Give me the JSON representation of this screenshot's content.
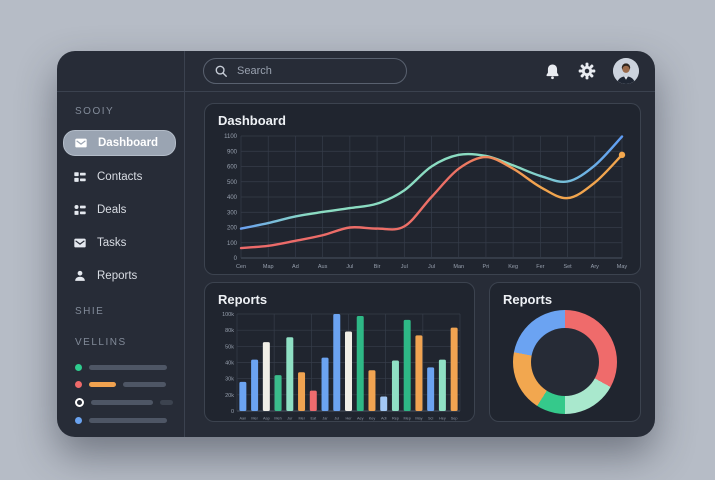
{
  "topbar": {
    "search": {
      "placeholder": "Search"
    },
    "icons": [
      "bell-icon",
      "gear-icon",
      "avatar"
    ]
  },
  "sidebar": {
    "section1_label": "SOOIY",
    "items": [
      {
        "label": "Dashboard",
        "icon": "mail-icon",
        "active": true
      },
      {
        "label": "Contacts",
        "icon": "list-icon",
        "active": false
      },
      {
        "label": "Deals",
        "icon": "people-icon",
        "active": false
      },
      {
        "label": "Tasks",
        "icon": "mail-icon",
        "active": false
      },
      {
        "label": "Reports",
        "icon": "person-icon",
        "active": false
      }
    ],
    "section2_label": "SHIE",
    "section3_label": "VELLINS",
    "legend_rows": [
      {
        "dot": "#2ecc8e",
        "ring": false,
        "bars": [
          {
            "c": "#4e5665",
            "w": 78
          }
        ]
      },
      {
        "dot": "#ee6a6a",
        "ring": false,
        "bars": [
          {
            "c": "#f0a24f",
            "w": 27
          },
          {
            "c": "#4e5665",
            "w": 43
          }
        ]
      },
      {
        "dot": "#ffffff",
        "ring": true,
        "bars": [
          {
            "c": "#4e5665",
            "w": 62
          },
          {
            "c": "#3c434f",
            "w": 13
          }
        ]
      },
      {
        "dot": "#6aa3f0",
        "ring": false,
        "bars": [
          {
            "c": "#4e5665",
            "w": 78
          }
        ]
      }
    ]
  },
  "colors": {
    "page_background": "#b6bcc6",
    "window_background": "#272c37",
    "card_background": "#20252f",
    "accent_blue": "#6ba3f1",
    "accent_mint": "#8bdcc2",
    "accent_green": "#2eb886",
    "accent_orange": "#f2a54e",
    "accent_red": "#ee6a6a"
  },
  "chart_data": [
    {
      "type": "line",
      "title": "Dashboard",
      "x_labels": [
        "Cen",
        "Map",
        "Ad",
        "Aus",
        "Jul",
        "Bir",
        "Jul",
        "Jul",
        "Man",
        "Pri",
        "Keg",
        "Fer",
        "Set",
        "Ary",
        "May"
      ],
      "y_labels": [
        "1100",
        "900",
        "600",
        "500",
        "400",
        "300",
        "200",
        "100",
        "0"
      ],
      "ylim": [
        0,
        1100
      ],
      "grid": true,
      "legend_position": "none",
      "series": [
        {
          "name": "teal-blue",
          "values": [
            265,
            315,
            375,
            415,
            450,
            490,
            610,
            825,
            930,
            920,
            835,
            740,
            690,
            835,
            1095
          ],
          "stops": [
            [
              0,
              "#6aa0f0"
            ],
            [
              0.18,
              "#8bdcc2"
            ],
            [
              0.72,
              "#8bdcc2"
            ],
            [
              1,
              "#5f9df5"
            ]
          ],
          "end_dot": false
        },
        {
          "name": "red-orange",
          "values": [
            90,
            110,
            155,
            205,
            275,
            265,
            285,
            550,
            805,
            910,
            805,
            640,
            540,
            680,
            930
          ],
          "stops": [
            [
              0,
              "#ec6a6a"
            ],
            [
              0.55,
              "#ec7066"
            ],
            [
              0.78,
              "#f2a54e"
            ],
            [
              1,
              "#f2a54e"
            ]
          ],
          "end_dot": true,
          "dot_color": "#f5a84e"
        }
      ]
    },
    {
      "type": "bar",
      "title": "Reports",
      "x_labels": [
        "Aan",
        "Mer",
        "Aap",
        "Meh",
        "Jur",
        "Mei",
        "Eat",
        "Jar",
        "Jul",
        "Her",
        "Aey",
        "Key",
        "Adi",
        "Rep",
        "Mep",
        "May",
        "Sci",
        "Hey",
        "Sep"
      ],
      "y_labels": [
        "100k",
        "80k",
        "50k",
        "40k",
        "30k",
        "20k",
        "0"
      ],
      "ylim": [
        0,
        100
      ],
      "grid": true,
      "values": [
        30,
        53,
        71,
        37,
        76,
        40,
        21,
        55,
        100,
        82,
        98,
        42,
        15,
        52,
        94,
        78,
        45,
        53,
        86
      ],
      "colors": [
        "#6ba3f1",
        "#6ba3f1",
        "#f1efe7",
        "#3abb8b",
        "#8fe0c4",
        "#f0a351",
        "#ef6b6e",
        "#6ba3f1",
        "#6ba3f1",
        "#f1efe7",
        "#2eb886",
        "#f0a351",
        "#a3c8f5",
        "#8fe0c4",
        "#2eb886",
        "#f0a351",
        "#6ba3f1",
        "#8fe0c4",
        "#f0a351"
      ]
    },
    {
      "type": "pie",
      "title": "Reports",
      "donut": true,
      "segments": [
        {
          "label": "segment-red",
          "value": 33,
          "color": "#ef6b6b"
        },
        {
          "label": "segment-mint",
          "value": 17,
          "color": "#a9e8cd"
        },
        {
          "label": "segment-green",
          "value": 9,
          "color": "#35c98b"
        },
        {
          "label": "segment-orange",
          "value": 19,
          "color": "#f2a74f"
        },
        {
          "label": "segment-blue",
          "value": 22,
          "color": "#6ba3f2"
        }
      ]
    }
  ]
}
